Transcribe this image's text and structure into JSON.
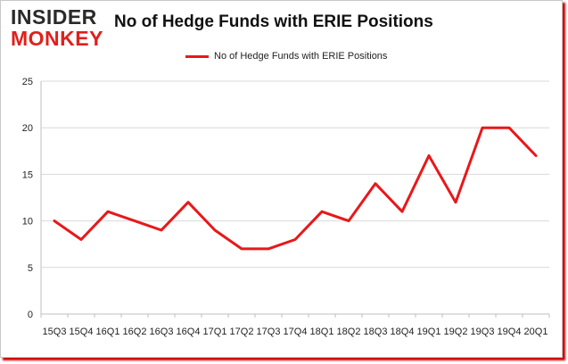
{
  "branding": {
    "logo_top": "INSIDER",
    "logo_bottom": "MONKEY"
  },
  "colors": {
    "series": "#e8181a",
    "grid": "#d9d9d9",
    "accent": "#e0201c"
  },
  "chart_data": {
    "type": "line",
    "title": "No of Hedge Funds with ERIE Positions",
    "xlabel": "",
    "ylabel": "",
    "ylim": [
      0,
      25
    ],
    "yticks": [
      0,
      5,
      10,
      15,
      20,
      25
    ],
    "grid": true,
    "legend_placement": "top",
    "x": [
      "15Q3",
      "15Q4",
      "16Q1",
      "16Q2",
      "16Q3",
      "16Q4",
      "17Q1",
      "17Q2",
      "17Q3",
      "17Q4",
      "18Q1",
      "18Q2",
      "18Q3",
      "18Q4",
      "19Q1",
      "19Q2",
      "19Q3",
      "19Q4",
      "20Q1"
    ],
    "series": [
      {
        "name": "No of Hedge Funds with ERIE  Positions",
        "values": [
          10,
          8,
          11,
          10,
          9,
          12,
          9,
          7,
          7,
          8,
          11,
          10,
          14,
          11,
          17,
          12,
          20,
          20,
          17
        ]
      }
    ]
  }
}
